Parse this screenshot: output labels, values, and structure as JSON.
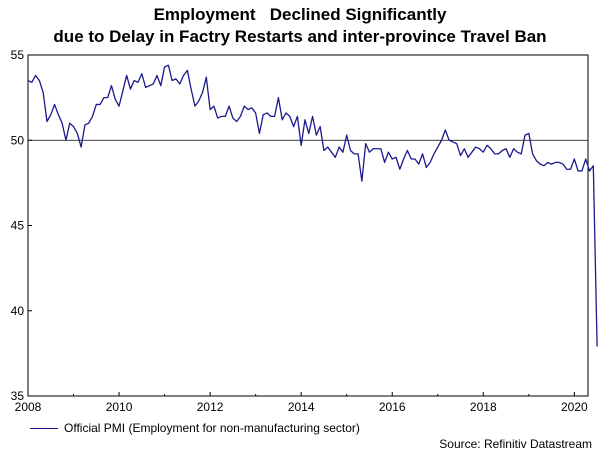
{
  "title_line1": "Employment   Declined Significantly",
  "title_line2": "due to Delay in Factry Restarts and inter-province Travel Ban",
  "source": "Source: Refinitiv Datastream",
  "colors": {
    "series": "#1a1a8c",
    "reference": "#000000",
    "axis": "#000000"
  },
  "chart_data": {
    "type": "line",
    "title": "Employment   Declined Significantly due to Delay in Factry Restarts and inter-province Travel Ban",
    "xlabel": "",
    "ylabel": "",
    "xlim": [
      2008.0,
      2020.3
    ],
    "ylim": [
      35,
      55
    ],
    "xticks": [
      2008,
      2010,
      2012,
      2014,
      2016,
      2018,
      2020
    ],
    "yticks": [
      35,
      40,
      45,
      50,
      55
    ],
    "reference_line": 50,
    "legend_position": "bottom-left",
    "grid": false,
    "series": [
      {
        "name": "Official PMI (Employment for non-manufacturing sector)",
        "start": "2008-01",
        "frequency": "monthly",
        "values": [
          53.5,
          53.4,
          53.8,
          53.5,
          52.8,
          51.1,
          51.5,
          52.1,
          51.5,
          51.0,
          50.0,
          51.0,
          50.8,
          50.4,
          49.6,
          50.9,
          51.0,
          51.4,
          52.1,
          52.1,
          52.5,
          52.5,
          53.2,
          52.4,
          52.0,
          52.9,
          53.8,
          53.0,
          53.5,
          53.4,
          53.9,
          53.1,
          53.2,
          53.3,
          53.8,
          53.2,
          54.3,
          54.4,
          53.5,
          53.6,
          53.3,
          53.8,
          54.1,
          53.0,
          52.0,
          52.3,
          52.8,
          53.7,
          51.8,
          52.0,
          51.3,
          51.4,
          51.4,
          52.0,
          51.3,
          51.1,
          51.4,
          52.0,
          51.8,
          51.9,
          51.6,
          50.4,
          51.5,
          51.6,
          51.4,
          51.4,
          52.5,
          51.2,
          51.6,
          51.4,
          50.8,
          51.4,
          49.7,
          51.2,
          50.4,
          51.4,
          50.3,
          50.8,
          49.4,
          49.6,
          49.3,
          49.0,
          49.6,
          49.3,
          50.3,
          49.4,
          49.2,
          49.2,
          47.6,
          49.8,
          49.3,
          49.5,
          49.5,
          49.5,
          48.7,
          49.3,
          48.9,
          49.0,
          48.3,
          48.9,
          49.4,
          48.9,
          48.9,
          48.6,
          49.2,
          48.4,
          48.7,
          49.2,
          49.6,
          50.0,
          50.6,
          50.0,
          49.9,
          49.8,
          49.1,
          49.5,
          49.0,
          49.3,
          49.6,
          49.5,
          49.3,
          49.7,
          49.5,
          49.2,
          49.2,
          49.4,
          49.5,
          49.0,
          49.5,
          49.3,
          49.2,
          50.3,
          50.4,
          49.2,
          48.8,
          48.6,
          48.5,
          48.7,
          48.6,
          48.7,
          48.7,
          48.6,
          48.3,
          48.3,
          48.9,
          48.2,
          48.2,
          48.9,
          48.2,
          48.5,
          37.9
        ]
      }
    ]
  }
}
